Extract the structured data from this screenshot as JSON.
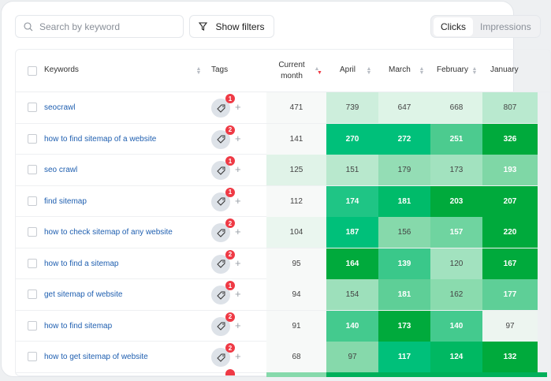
{
  "search": {
    "placeholder": "Search by keyword"
  },
  "filters": {
    "label": "Show filters"
  },
  "metric_toggle": {
    "options": [
      "Clicks",
      "Impressions"
    ],
    "selected": "Clicks"
  },
  "columns": {
    "keywords": "Keywords",
    "tags": "Tags",
    "current_month": "Current month",
    "months": [
      "April",
      "March",
      "February",
      "January"
    ],
    "sort_active": "current_month",
    "sort_color": "#ef3a45"
  },
  "rows": [
    {
      "keyword": "seocrawl",
      "tag_count": "1",
      "current": "471",
      "values": [
        "739",
        "647",
        "668",
        "807"
      ],
      "colors": [
        "#f7f9f8",
        "#cdeedc",
        "#def4e7",
        "#def4e7",
        "#b9e9cf"
      ]
    },
    {
      "keyword": "how to find sitemap of a website",
      "tag_count": "2",
      "current": "141",
      "values": [
        "270",
        "272",
        "251",
        "326"
      ],
      "colors": [
        "#f7f9f8",
        "#00c07a",
        "#00c07a",
        "#4ccb8f",
        "#00aa3c"
      ]
    },
    {
      "keyword": "seo crawl",
      "tag_count": "1",
      "current": "125",
      "values": [
        "151",
        "179",
        "173",
        "193"
      ],
      "colors": [
        "#e0f3e8",
        "#b8e8cd",
        "#94ddb5",
        "#a2e2bf",
        "#7fd7a6"
      ]
    },
    {
      "keyword": "find sitemap",
      "tag_count": "1",
      "current": "112",
      "values": [
        "174",
        "181",
        "203",
        "207"
      ],
      "colors": [
        "#f7f9f8",
        "#1fc585",
        "#00bb6a",
        "#00aa3c",
        "#00aa3c"
      ]
    },
    {
      "keyword": "how to check sitemap of any website",
      "tag_count": "2",
      "current": "104",
      "values": [
        "187",
        "156",
        "157",
        "220"
      ],
      "colors": [
        "#eaf6ef",
        "#00c07a",
        "#86d9ab",
        "#6fd4a0",
        "#00aa3c"
      ]
    },
    {
      "keyword": "how to find a sitemap",
      "tag_count": "2",
      "current": "95",
      "values": [
        "164",
        "139",
        "120",
        "167"
      ],
      "colors": [
        "#f7f9f8",
        "#00aa3c",
        "#3ac88a",
        "#a2e2bf",
        "#00aa3c"
      ]
    },
    {
      "keyword": "get sitemap of website",
      "tag_count": "1",
      "current": "94",
      "values": [
        "154",
        "181",
        "162",
        "177"
      ],
      "colors": [
        "#f7f9f8",
        "#9de0bb",
        "#5ecf97",
        "#8adbae",
        "#5ecf97"
      ]
    },
    {
      "keyword": "how to find sitemap",
      "tag_count": "2",
      "current": "91",
      "values": [
        "140",
        "173",
        "140",
        "97"
      ],
      "colors": [
        "#f7f9f8",
        "#44ca8e",
        "#00aa3c",
        "#44ca8e",
        "#edf5f0"
      ]
    },
    {
      "keyword": "how to get sitemap of website",
      "tag_count": "2",
      "current": "68",
      "values": [
        "97",
        "117",
        "124",
        "132"
      ],
      "colors": [
        "#f7f9f8",
        "#86d9ab",
        "#00c07a",
        "#00b862",
        "#00aa3c"
      ]
    }
  ],
  "bold_threshold_light": [
    "#f7f9f8",
    "#cdeedc",
    "#def4e7",
    "#b9e9cf",
    "#e0f3e8",
    "#b8e8cd",
    "#94ddb5",
    "#a2e2bf",
    "#86d9ab",
    "#9de0bb",
    "#8adbae",
    "#edf5f0",
    "#eaf6ef"
  ]
}
